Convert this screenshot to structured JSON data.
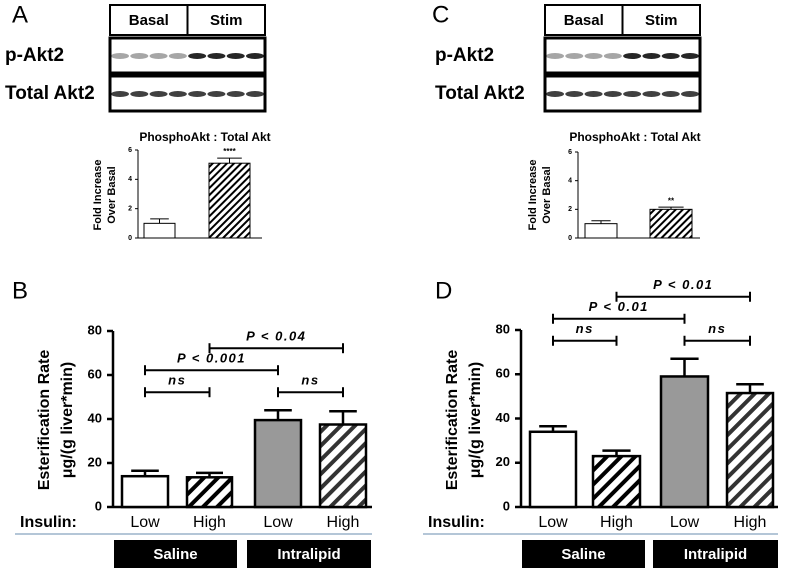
{
  "chart_data": [
    {
      "type": "bar",
      "panel": "A",
      "blot": {
        "columns": [
          "Basal",
          "Stim"
        ],
        "rows": [
          "p-Akt2",
          "Total Akt2"
        ]
      },
      "title": "PhosphoAkt : Total Akt",
      "y_label": [
        "Fold Increase",
        "Over Basal"
      ],
      "values": [
        1.0,
        5.1
      ],
      "errors": [
        0.3,
        0.35
      ],
      "colors": [
        "#ffffff",
        "#000000"
      ],
      "hatched": [
        false,
        true
      ],
      "significance": [
        null,
        "****"
      ],
      "ylim": [
        0,
        6
      ],
      "yticks": [
        0,
        2,
        4,
        6
      ]
    },
    {
      "type": "bar",
      "panel": "C",
      "blot": {
        "columns": [
          "Basal",
          "Stim"
        ],
        "rows": [
          "p-Akt2",
          "Total Akt2"
        ]
      },
      "title": "PhosphoAkt : Total Akt",
      "y_label": [
        "Fold Increase",
        "Over Basal"
      ],
      "values": [
        1.0,
        2.0
      ],
      "errors": [
        0.2,
        0.15
      ],
      "colors": [
        "#ffffff",
        "#000000"
      ],
      "hatched": [
        false,
        true
      ],
      "significance": [
        null,
        "**"
      ],
      "ylim": [
        0,
        6
      ],
      "yticks": [
        0,
        2,
        4,
        6
      ]
    },
    {
      "type": "bar",
      "panel": "B",
      "y_label": [
        "Esterification Rate",
        "μg/(g liver*min)"
      ],
      "x_prefix": "Insulin:",
      "categories": [
        "Low",
        "High",
        "Low",
        "High"
      ],
      "values": [
        14,
        13.5,
        39.5,
        37.5
      ],
      "errors": [
        2.5,
        2,
        4.5,
        6
      ],
      "colors": [
        "#ffffff",
        "#000000",
        "#999999",
        "#333333"
      ],
      "hatched": [
        false,
        true,
        false,
        true
      ],
      "ylim": [
        0,
        80
      ],
      "yticks": [
        0,
        20,
        40,
        60,
        80
      ],
      "groups": [
        {
          "label": "Saline",
          "from": 0,
          "to": 1
        },
        {
          "label": "Intralipid",
          "from": 2,
          "to": 3
        }
      ],
      "comparisons": [
        {
          "from": 0,
          "to": 1,
          "label": "ns"
        },
        {
          "from": 0,
          "to": 2,
          "label": "P < 0.001"
        },
        {
          "from": 2,
          "to": 3,
          "label": "ns"
        },
        {
          "from": 1,
          "to": 3,
          "label": "P < 0.04"
        }
      ]
    },
    {
      "type": "bar",
      "panel": "D",
      "y_label": [
        "Esterification Rate",
        "μg/(g liver*min)"
      ],
      "x_prefix": "Insulin:",
      "categories": [
        "Low",
        "High",
        "Low",
        "High"
      ],
      "values": [
        34,
        23,
        59,
        51.5
      ],
      "errors": [
        2.5,
        2.5,
        8,
        4
      ],
      "colors": [
        "#ffffff",
        "#000000",
        "#999999",
        "#333333"
      ],
      "hatched": [
        false,
        true,
        false,
        true
      ],
      "ylim": [
        0,
        80
      ],
      "yticks": [
        0,
        20,
        40,
        60,
        80
      ],
      "groups": [
        {
          "label": "Saline",
          "from": 0,
          "to": 1
        },
        {
          "label": "Intralipid",
          "from": 2,
          "to": 3
        }
      ],
      "comparisons": [
        {
          "from": 0,
          "to": 1,
          "label": "ns"
        },
        {
          "from": 0,
          "to": 2,
          "label": "P < 0.01"
        },
        {
          "from": 2,
          "to": 3,
          "label": "ns"
        },
        {
          "from": 1,
          "to": 3,
          "label": "P < 0.01"
        }
      ]
    }
  ]
}
